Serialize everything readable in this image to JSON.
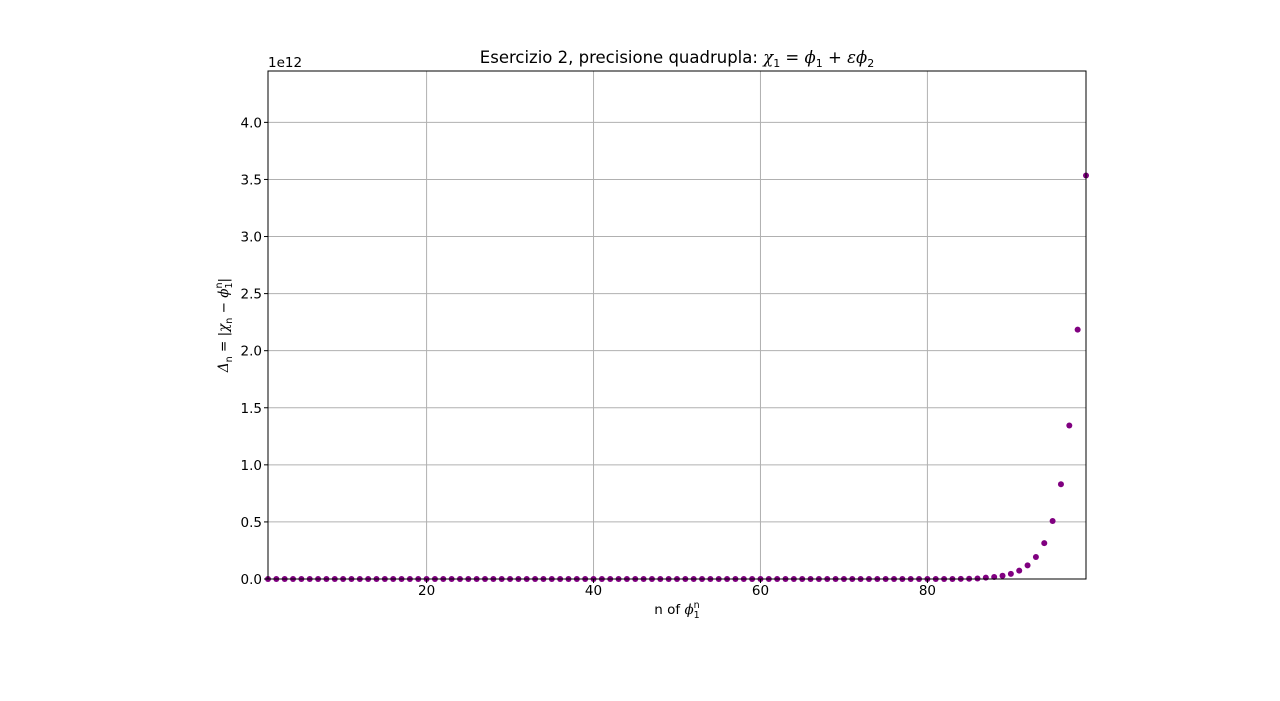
{
  "chart_data": {
    "type": "scatter",
    "title": "Esercizio 2, precisione quadrupla: χ₁ = ϕ₁ + εϕ₂",
    "title_parts": {
      "text": "Esercizio 2, precisione quadrupla: ",
      "m1": "χ",
      "s1": "1",
      "m2": " = ",
      "m3": "ϕ",
      "s2": "1",
      "m4": " + ",
      "m5": "εϕ",
      "s3": "2"
    },
    "xlabel": "n of ϕ₁ⁿ",
    "xlabel_parts": {
      "text": "n of ",
      "m": "ϕ",
      "sup": "n",
      "sub": "1"
    },
    "ylabel": "Δₙ = |χₙ − ϕ₁ⁿ|",
    "ylabel_parts": {
      "d": "Δ",
      "ds": "n",
      "eq": " = |",
      "c": "χ",
      "cs": "n",
      "minus": " − ",
      "p": "ϕ",
      "pu": "n",
      "ps": "1",
      "end": "|"
    },
    "offset_text": "1e12",
    "xlim": [
      1,
      99
    ],
    "ylim": [
      0,
      4.45
    ],
    "y_scale_factor": 1000000000000.0,
    "xticks": [
      20,
      40,
      60,
      80
    ],
    "yticks": [
      0.0,
      0.5,
      1.0,
      1.5,
      2.0,
      2.5,
      3.0,
      3.5,
      4.0
    ],
    "ytick_labels": [
      "0.0",
      "0.5",
      "1.0",
      "1.5",
      "2.0",
      "2.5",
      "3.0",
      "3.5",
      "4.0"
    ],
    "xtick_labels": [
      "20",
      "40",
      "60",
      "80"
    ],
    "grid": true,
    "marker_color": "#800080",
    "series": [
      {
        "x": [
          1,
          2,
          3,
          4,
          5,
          6,
          7,
          8,
          9,
          10,
          11,
          12,
          13,
          14,
          15,
          16,
          17,
          18,
          19,
          20,
          21,
          22,
          23,
          24,
          25,
          26,
          27,
          28,
          29,
          30,
          31,
          32,
          33,
          34,
          35,
          36,
          37,
          38,
          39,
          40,
          41,
          42,
          43,
          44,
          45,
          46,
          47,
          48,
          49,
          50,
          51,
          52,
          53,
          54,
          55,
          56,
          57,
          58,
          59,
          60,
          61,
          62,
          63,
          64,
          65,
          66,
          67,
          68,
          69,
          70,
          71,
          72,
          73,
          74,
          75,
          76,
          77,
          78,
          79,
          80,
          81,
          82,
          83,
          84,
          85,
          86,
          87,
          88,
          89,
          90,
          91,
          92,
          93,
          94,
          95,
          96,
          97,
          98,
          99
        ],
        "values": [
          0,
          0,
          0,
          0,
          0,
          0,
          0,
          0,
          0,
          0,
          0,
          0,
          0,
          0,
          0,
          0,
          0,
          0,
          0,
          0,
          0,
          0,
          0,
          0,
          0,
          0,
          0,
          0,
          0,
          0,
          0,
          0,
          0,
          0,
          0,
          0,
          0,
          0,
          0,
          0,
          0,
          0,
          0,
          0,
          0,
          0,
          0,
          0,
          0,
          0,
          0,
          0,
          0,
          0,
          0,
          0,
          0,
          0,
          0,
          0,
          0,
          0,
          0,
          0,
          0,
          0,
          0,
          0,
          0,
          0,
          0,
          0,
          0,
          0,
          0,
          0,
          0,
          0,
          0,
          0,
          0,
          0,
          0,
          0.0006,
          0.0017,
          0.0045,
          0.012,
          0.018,
          0.028,
          0.045,
          0.073,
          0.119,
          0.193,
          0.314,
          0.508,
          0.83,
          1.345,
          2.185,
          3.535
        ]
      }
    ]
  }
}
